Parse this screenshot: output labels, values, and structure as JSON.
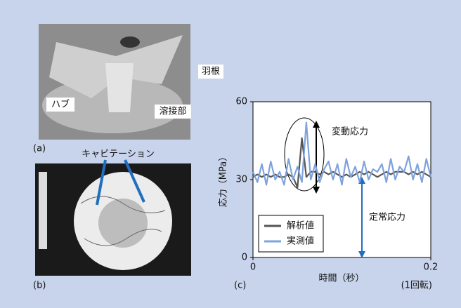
{
  "figure": {
    "panel_a": {
      "label": "(a)",
      "callouts": [
        "羽根",
        "ハブ",
        "溶接部"
      ]
    },
    "panel_b": {
      "label": "(b)",
      "callout": "キャビテーション"
    },
    "panel_c": {
      "label": "(c)"
    }
  },
  "chart_data": {
    "type": "line",
    "x_label": "時間（秒）",
    "x_note": "(1回転)",
    "y_label": "応力（MPa）",
    "annotations": [
      "変動応力",
      "定常応力"
    ],
    "x": [
      0,
      0.005,
      0.01,
      0.015,
      0.02,
      0.025,
      0.03,
      0.035,
      0.04,
      0.045,
      0.05,
      0.055,
      0.06,
      0.065,
      0.07,
      0.075,
      0.08,
      0.085,
      0.09,
      0.095,
      0.1,
      0.105,
      0.11,
      0.115,
      0.12,
      0.125,
      0.13,
      0.135,
      0.14,
      0.145,
      0.15,
      0.155,
      0.16,
      0.165,
      0.17,
      0.175,
      0.18,
      0.185,
      0.19,
      0.195,
      0.2
    ],
    "series": [
      {
        "name": "解析値",
        "color": "#555555",
        "values": [
          31,
          32,
          31,
          32,
          31,
          32,
          31,
          31,
          32,
          31,
          27,
          46,
          31,
          33,
          33,
          32,
          33,
          32,
          33,
          32,
          31,
          32,
          31,
          32,
          33,
          32,
          33,
          32,
          31,
          32,
          33,
          32,
          33,
          33,
          33,
          32,
          33,
          32,
          33,
          32,
          31
        ]
      },
      {
        "name": "実測値",
        "color": "#7ea3dc",
        "values": [
          33,
          29,
          36,
          28,
          37,
          30,
          33,
          28,
          38,
          30,
          35,
          29,
          52,
          30,
          36,
          29,
          34,
          37,
          30,
          36,
          28,
          38,
          31,
          35,
          29,
          37,
          30,
          34,
          33,
          36,
          29,
          38,
          30,
          35,
          33,
          39,
          30,
          36,
          29,
          38,
          31
        ]
      }
    ],
    "xlim": [
      0,
      0.2
    ],
    "xticks": [
      0,
      0.2
    ],
    "ylim": [
      0,
      60
    ],
    "yticks": [
      0,
      30,
      60
    ],
    "legend": "lower left"
  }
}
